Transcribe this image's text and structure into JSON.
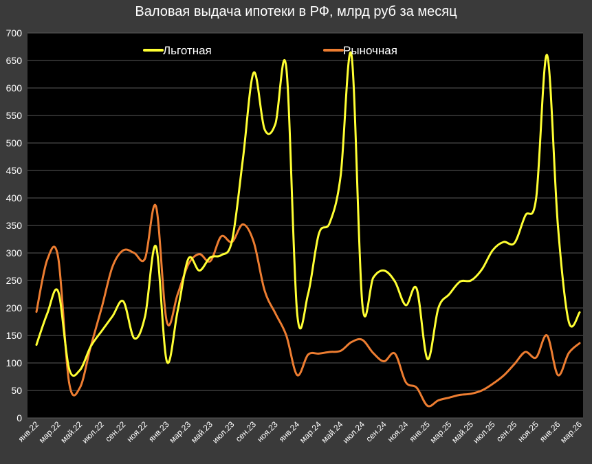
{
  "chart_data": {
    "type": "line",
    "title": "Валовая выдача ипотеки в РФ, млрд руб за месяц",
    "xlabel": "",
    "ylabel": "",
    "ylim": [
      0,
      700
    ],
    "yticks": [
      0,
      50,
      100,
      150,
      200,
      250,
      300,
      350,
      400,
      450,
      500,
      550,
      600,
      650,
      700
    ],
    "grid": "horizontal",
    "legend_position": "top",
    "x_tick_labels": [
      "янв.22",
      "мар.22",
      "май.22",
      "июл.22",
      "сен.22",
      "ноя.22",
      "янв.23",
      "мар.23",
      "май.23",
      "июл.23",
      "сен.23",
      "ноя.23",
      "янв.24",
      "мар.24",
      "май.24",
      "июл.24",
      "сен.24",
      "ноя.24",
      "янв.25",
      "мар.25",
      "май.25",
      "июл.25",
      "сен.25",
      "ноя.25",
      "янв.26",
      "мар.26"
    ],
    "x": [
      "янв.22",
      "фев.22",
      "мар.22",
      "апр.22",
      "май.22",
      "июн.22",
      "июл.22",
      "авг.22",
      "сен.22",
      "окт.22",
      "ноя.22",
      "дек.22",
      "янв.23",
      "фев.23",
      "мар.23",
      "апр.23",
      "май.23",
      "июн.23",
      "июл.23",
      "авг.23",
      "сен.23",
      "окт.23",
      "ноя.23",
      "дек.23",
      "янв.24",
      "фев.24",
      "мар.24",
      "апр.24",
      "май.24",
      "июн.24",
      "июл.24",
      "авг.24",
      "сен.24",
      "окт.24",
      "ноя.24",
      "дек.24",
      "янв.25",
      "фев.25",
      "мар.25",
      "апр.25",
      "май.25",
      "июн.25",
      "июл.25",
      "авг.25",
      "сен.25",
      "окт.25",
      "ноя.25",
      "дек.25",
      "янв.26",
      "фев.26",
      "мар.26"
    ],
    "series": [
      {
        "name": "Льготная",
        "color": "#ffff33",
        "values": [
          133,
          190,
          230,
          90,
          87,
          130,
          158,
          185,
          212,
          145,
          185,
          312,
          103,
          195,
          290,
          268,
          292,
          296,
          322,
          470,
          628,
          525,
          535,
          637,
          190,
          225,
          335,
          355,
          440,
          660,
          207,
          255,
          268,
          248,
          205,
          235,
          107,
          200,
          225,
          248,
          250,
          270,
          305,
          320,
          318,
          368,
          400,
          660,
          350,
          175,
          192
        ]
      },
      {
        "name": "Рыночная",
        "color": "#ed7d31",
        "values": [
          193,
          288,
          292,
          65,
          55,
          130,
          200,
          275,
          305,
          300,
          290,
          385,
          175,
          225,
          280,
          298,
          285,
          330,
          320,
          352,
          320,
          232,
          190,
          150,
          78,
          115,
          117,
          120,
          122,
          138,
          142,
          118,
          103,
          117,
          65,
          55,
          22,
          32,
          37,
          42,
          44,
          50,
          62,
          77,
          98,
          120,
          110,
          150,
          78,
          118,
          136
        ]
      }
    ]
  }
}
